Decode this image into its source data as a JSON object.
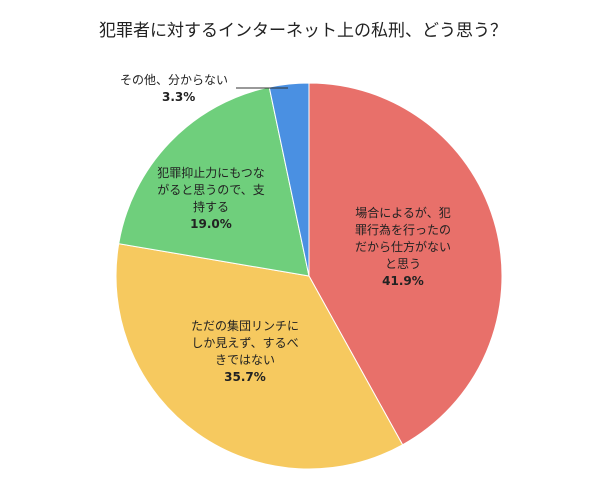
{
  "chart_data": {
    "type": "pie",
    "title": "犯罪者に対するインターネット上の私刑、どう思う？",
    "categories": [
      "場合によるが、犯罪行為を行ったのだから仕方がないと思う",
      "ただの集団リンチにしか見えず、するべきではない",
      "犯罪抑止力にもつながると思うので、支持する",
      "その他、分からない"
    ],
    "values": [
      41.9,
      35.7,
      19.0,
      3.3
    ],
    "value_labels": [
      "41.9%",
      "35.7%",
      "19.0%",
      "3.3%"
    ],
    "colors": [
      "#e8706a",
      "#f6c95f",
      "#6fcf7c",
      "#4a90e2"
    ]
  }
}
